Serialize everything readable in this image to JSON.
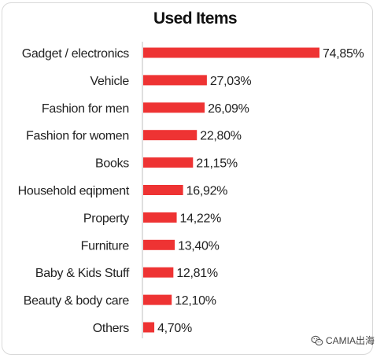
{
  "chart_data": {
    "type": "bar",
    "orientation": "horizontal",
    "title": "Used Items",
    "categories": [
      "Gadget / electronics",
      "Vehicle",
      "Fashion for men",
      "Fashion for women",
      "Books",
      "Household eqipment",
      "Property",
      "Furniture",
      "Baby & Kids Stuff",
      "Beauty & body care",
      "Others"
    ],
    "values": [
      74.85,
      27.03,
      26.09,
      22.8,
      21.15,
      16.92,
      14.22,
      13.4,
      12.81,
      12.1,
      4.7
    ],
    "value_labels": [
      "74,85%",
      "27,03%",
      "26,09%",
      "22,80%",
      "21,15%",
      "16,92%",
      "14,22%",
      "13,40%",
      "12,81%",
      "12,10%",
      "4,70%"
    ],
    "xlim": [
      0,
      74.85
    ],
    "bar_color": "#ee3333",
    "grid": false,
    "legend": "none"
  },
  "watermark": {
    "text": "CAMIA出海",
    "icon": "wechat-icon"
  }
}
